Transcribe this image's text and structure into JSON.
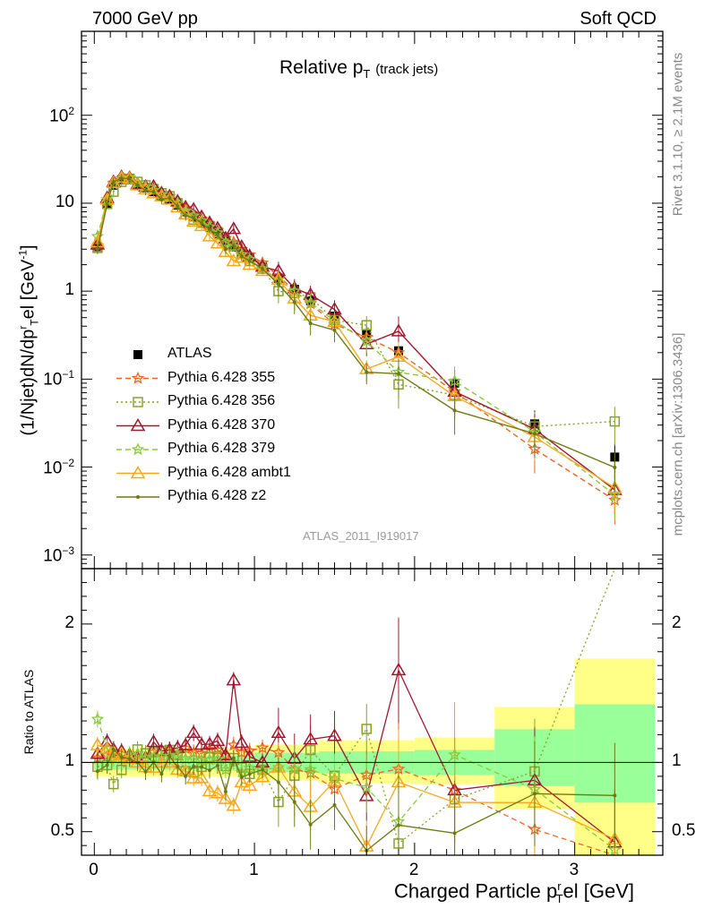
{
  "header": {
    "left": "7000 GeV pp",
    "right": "Soft QCD"
  },
  "side": {
    "rivet": "Rivet 3.1.10, ≥ 2.1M events",
    "mcplots": "mcplots.cern.ch [arXiv:1306.3436]"
  },
  "chart_data": [
    {
      "type": "line",
      "title": "Relative pT (track jets)",
      "title_main": "Relative p",
      "title_sub": "T",
      "title_extra": "(track jets)",
      "ylabel": "(1/Njet)dN/dp^r_T el [GeV^-1]",
      "yscale": "log",
      "ylim": [
        0.0007,
        900
      ],
      "xlim": [
        -0.08,
        3.55
      ],
      "yticks": [
        {
          "value": 0.001,
          "base": "10",
          "exp": "−3"
        },
        {
          "value": 0.01,
          "base": "10",
          "exp": "−2"
        },
        {
          "value": 0.1,
          "base": "10",
          "exp": "−1"
        },
        {
          "value": 1,
          "base": "1",
          "exp": ""
        },
        {
          "value": 10,
          "base": "10",
          "exp": ""
        },
        {
          "value": 100,
          "base": "10",
          "exp": "2"
        }
      ],
      "watermark": "ATLAS_2011_I919017",
      "x": [
        0.02,
        0.08,
        0.12,
        0.17,
        0.22,
        0.27,
        0.32,
        0.37,
        0.42,
        0.47,
        0.52,
        0.57,
        0.62,
        0.67,
        0.72,
        0.77,
        0.82,
        0.87,
        0.92,
        0.97,
        1.05,
        1.15,
        1.25,
        1.35,
        1.5,
        1.7,
        1.9,
        2.25,
        2.75,
        3.25
      ],
      "series": [
        {
          "name": "ATLAS",
          "color": "#000000",
          "style": "data",
          "marker": "square",
          "values": [
            3.2,
            10.0,
            16.0,
            18.5,
            18.5,
            16.0,
            15.0,
            13.5,
            12.0,
            11.0,
            9.5,
            8.0,
            7.0,
            6.2,
            5.3,
            4.5,
            3.8,
            3.2,
            2.8,
            2.4,
            1.9,
            1.4,
            1.05,
            0.78,
            0.52,
            0.33,
            0.21,
            0.09,
            0.031,
            0.013
          ]
        },
        {
          "name": "Pythia 6.428 355",
          "color": "#ee6622",
          "style": "dashed",
          "marker": "star",
          "values": [
            3.3,
            10.5,
            17.0,
            19.0,
            19.2,
            17.0,
            15.5,
            14.5,
            12.5,
            12.0,
            10.0,
            8.8,
            7.5,
            6.6,
            5.8,
            4.9,
            4.0,
            3.6,
            3.0,
            2.6,
            2.1,
            1.5,
            1.0,
            0.72,
            0.42,
            0.3,
            0.2,
            0.072,
            0.016,
            0.0042
          ]
        },
        {
          "name": "Pythia 6.428 356",
          "color": "#88a22a",
          "style": "dotted",
          "marker": "open-square",
          "values": [
            3.1,
            9.8,
            13.5,
            17.5,
            19.0,
            17.5,
            16.0,
            14.5,
            13.0,
            12.0,
            10.0,
            7.5,
            6.5,
            6.0,
            5.5,
            4.7,
            3.7,
            3.3,
            2.7,
            2.2,
            1.8,
            1.0,
            0.95,
            0.85,
            0.47,
            0.41,
            0.087,
            0.066,
            0.029,
            0.033
          ]
        },
        {
          "name": "Pythia 6.428 370",
          "color": "#a01830",
          "style": "solid",
          "marker": "open-triangle",
          "values": [
            3.4,
            11.5,
            17.5,
            20.0,
            19.5,
            16.5,
            15.5,
            15.5,
            13.0,
            12.0,
            10.5,
            9.0,
            8.5,
            7.0,
            6.0,
            5.2,
            4.0,
            5.1,
            3.2,
            2.5,
            1.9,
            1.7,
            1.08,
            0.91,
            0.62,
            0.25,
            0.35,
            0.072,
            0.027,
            0.0055
          ]
        },
        {
          "name": "Pythia 6.428 379",
          "color": "#8cc83c",
          "style": "dashed",
          "marker": "star",
          "values": [
            4.2,
            11.0,
            16.5,
            19.0,
            19.5,
            17.0,
            15.5,
            14.0,
            12.5,
            11.5,
            10.0,
            8.2,
            7.2,
            6.3,
            5.4,
            4.6,
            3.6,
            3.2,
            2.6,
            2.3,
            1.8,
            1.35,
            1.0,
            0.74,
            0.46,
            0.27,
            0.12,
            0.095,
            0.025,
            0.0048
          ]
        },
        {
          "name": "Pythia 6.428 ambt1",
          "color": "#f5a81e",
          "style": "solid",
          "marker": "open-triangle",
          "values": [
            3.6,
            11.0,
            17.0,
            19.5,
            19.0,
            16.0,
            14.5,
            13.0,
            12.0,
            11.0,
            9.0,
            7.5,
            6.2,
            5.5,
            4.2,
            3.5,
            2.8,
            2.2,
            2.4,
            2.0,
            1.7,
            1.35,
            0.83,
            0.53,
            0.45,
            0.13,
            0.18,
            0.064,
            0.022,
            0.0058
          ]
        },
        {
          "name": "Pythia 6.428 z2",
          "color": "#6e7a14",
          "style": "solid",
          "marker": "dot",
          "values": [
            3.0,
            9.8,
            17.5,
            19.2,
            19.0,
            16.0,
            14.0,
            13.5,
            11.0,
            11.5,
            9.2,
            7.2,
            6.8,
            6.0,
            5.0,
            4.4,
            3.0,
            3.3,
            2.5,
            2.2,
            1.8,
            1.2,
            0.75,
            0.43,
            0.36,
            0.12,
            0.115,
            0.044,
            0.024,
            0.0099
          ]
        }
      ],
      "legend": [
        {
          "label": "ATLAS"
        },
        {
          "label": "Pythia 6.428 355"
        },
        {
          "label": "Pythia 6.428 356"
        },
        {
          "label": "Pythia 6.428 370"
        },
        {
          "label": "Pythia 6.428 379"
        },
        {
          "label": "Pythia 6.428 ambt1"
        },
        {
          "label": "Pythia 6.428 z2"
        }
      ]
    },
    {
      "type": "line",
      "title": "Ratio to ATLAS",
      "ylabel": "Ratio to ATLAS",
      "xlabel": "Charged Particle p^r_T el [GeV]",
      "xlabel_main": "Charged Particle p",
      "xlabel_sub": "T",
      "xlabel_sup": "r",
      "xlabel_tail": "el [GeV]",
      "ylim": [
        0.33,
        2.4
      ],
      "xlim": [
        -0.08,
        3.55
      ],
      "yticks": [
        0.5,
        1,
        2
      ],
      "ytick_labels": [
        "0.5",
        "1",
        "2"
      ],
      "xticks": [
        0,
        1,
        2,
        3
      ],
      "xtick_labels": [
        "0",
        "1",
        "2",
        "3"
      ],
      "bands": [
        {
          "x0": 0.0,
          "x1": 1.0,
          "green": [
            0.95,
            1.05
          ],
          "yellow": [
            0.9,
            1.1
          ]
        },
        {
          "x0": 1.0,
          "x1": 1.4,
          "green": [
            0.93,
            1.07
          ],
          "yellow": [
            0.87,
            1.13
          ]
        },
        {
          "x0": 1.4,
          "x1": 2.0,
          "green": [
            0.92,
            1.08
          ],
          "yellow": [
            0.85,
            1.16
          ]
        },
        {
          "x0": 2.0,
          "x1": 2.5,
          "green": [
            0.91,
            1.09
          ],
          "yellow": [
            0.84,
            1.18
          ]
        },
        {
          "x0": 2.5,
          "x1": 3.0,
          "green": [
            0.83,
            1.24
          ],
          "yellow": [
            0.66,
            1.4
          ]
        },
        {
          "x0": 3.0,
          "x1": 3.5,
          "green": [
            0.71,
            1.42
          ],
          "yellow": [
            0.33,
            1.75
          ]
        }
      ]
    }
  ]
}
